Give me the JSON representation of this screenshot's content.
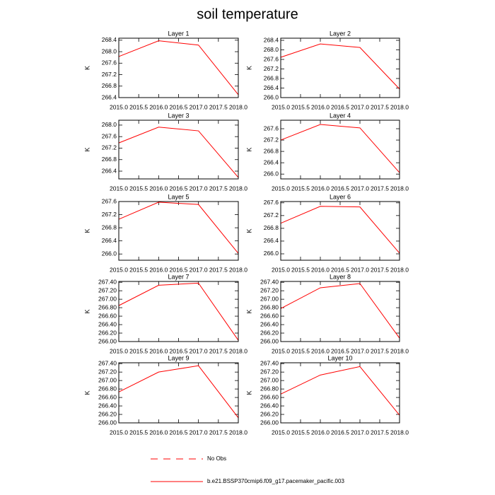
{
  "title": "soil temperature",
  "legend": [
    {
      "label": "No Obs",
      "color": "#ff0000",
      "dashed": true
    },
    {
      "label": "b.e21.BSSP370cmip6.f09_g17.pacemaker_pacific.003",
      "color": "#ff0000",
      "dashed": false
    }
  ],
  "chart_data": [
    {
      "type": "line",
      "title": "Layer 1",
      "ylabel": "K",
      "x": [
        2015,
        2016,
        2017,
        2018
      ],
      "xlim": [
        2015,
        2018
      ],
      "xticks": [
        {
          "value": 2015,
          "label": "2015.0"
        },
        2015.5,
        {
          "value": 2016,
          "label": "2016.0"
        },
        2016.5,
        {
          "value": 2017,
          "label": "2017.0"
        },
        2017.5,
        {
          "value": 2018,
          "label": "2018.0"
        }
      ],
      "ylim": [
        266.4,
        268.47
      ],
      "yticks": [
        266.4,
        266.8,
        267.2,
        267.6,
        {
          "value": 268,
          "label": "268.0"
        },
        268.4
      ],
      "series": [
        {
          "color": "#ff0000",
          "values": [
            267.83,
            268.38,
            268.23,
            266.5
          ]
        }
      ]
    },
    {
      "type": "line",
      "title": "Layer 2",
      "ylabel": "K",
      "x": [
        2015,
        2016,
        2017,
        2018
      ],
      "xlim": [
        2015,
        2018
      ],
      "xticks": [
        {
          "value": 2015,
          "label": "2015.0"
        },
        2015.5,
        {
          "value": 2016,
          "label": "2016.0"
        },
        2016.5,
        {
          "value": 2017,
          "label": "2017.0"
        },
        2017.5,
        {
          "value": 2018,
          "label": "2018.0"
        }
      ],
      "ylim": [
        266.0,
        268.49
      ],
      "yticks": [
        {
          "value": 266,
          "label": "266.0"
        },
        266.4,
        266.8,
        267.2,
        267.6,
        {
          "value": 268,
          "label": "268.0"
        },
        268.4
      ],
      "series": [
        {
          "color": "#ff0000",
          "values": [
            267.69,
            268.25,
            268.1,
            266.36
          ]
        }
      ]
    },
    {
      "type": "line",
      "title": "Layer 3",
      "ylabel": "K",
      "x": [
        2015,
        2016,
        2017,
        2018
      ],
      "xlim": [
        2015,
        2018
      ],
      "xticks": [
        {
          "value": 2015,
          "label": "2015.0"
        },
        2015.5,
        {
          "value": 2016,
          "label": "2016.0"
        },
        2016.5,
        {
          "value": 2017,
          "label": "2017.0"
        },
        2017.5,
        {
          "value": 2018,
          "label": "2018.0"
        }
      ],
      "ylim": [
        266.13,
        268.17
      ],
      "yticks": [
        266.4,
        266.8,
        267.2,
        267.6,
        {
          "value": 268,
          "label": "268.0"
        }
      ],
      "series": [
        {
          "color": "#ff0000",
          "values": [
            267.38,
            267.93,
            267.8,
            266.18
          ]
        }
      ]
    },
    {
      "type": "line",
      "title": "Layer 4",
      "ylabel": "K",
      "x": [
        2015,
        2016,
        2017,
        2018
      ],
      "xlim": [
        2015,
        2018
      ],
      "xticks": [
        {
          "value": 2015,
          "label": "2015.0"
        },
        2015.5,
        {
          "value": 2016,
          "label": "2016.0"
        },
        2016.5,
        {
          "value": 2017,
          "label": "2017.0"
        },
        2017.5,
        {
          "value": 2018,
          "label": "2018.0"
        }
      ],
      "ylim": [
        265.83,
        267.9
      ],
      "yticks": [
        {
          "value": 266,
          "label": "266.0"
        },
        266.4,
        266.8,
        267.2,
        267.6
      ],
      "series": [
        {
          "color": "#ff0000",
          "values": [
            267.2,
            267.75,
            267.63,
            266.05
          ]
        }
      ]
    },
    {
      "type": "line",
      "title": "Layer 5",
      "ylabel": "K",
      "x": [
        2015,
        2016,
        2017,
        2018
      ],
      "xlim": [
        2015,
        2018
      ],
      "xticks": [
        {
          "value": 2015,
          "label": "2015.0"
        },
        2015.5,
        {
          "value": 2016,
          "label": "2016.0"
        },
        2016.5,
        {
          "value": 2017,
          "label": "2017.0"
        },
        2017.5,
        {
          "value": 2018,
          "label": "2018.0"
        }
      ],
      "ylim": [
        265.81,
        267.6
      ],
      "yticks": [
        {
          "value": 266,
          "label": "266.0"
        },
        266.4,
        266.8,
        267.2,
        267.6
      ],
      "series": [
        {
          "color": "#ff0000",
          "values": [
            267.06,
            267.58,
            267.51,
            266.02
          ]
        }
      ]
    },
    {
      "type": "line",
      "title": "Layer 6",
      "ylabel": "K",
      "x": [
        2015,
        2016,
        2017,
        2018
      ],
      "xlim": [
        2015,
        2018
      ],
      "xticks": [
        {
          "value": 2015,
          "label": "2015.0"
        },
        2015.5,
        {
          "value": 2016,
          "label": "2016.0"
        },
        2016.5,
        {
          "value": 2017,
          "label": "2017.0"
        },
        2017.5,
        {
          "value": 2018,
          "label": "2018.0"
        }
      ],
      "ylim": [
        265.8,
        267.64
      ],
      "yticks": [
        {
          "value": 266,
          "label": "266.0"
        },
        266.4,
        266.8,
        267.2,
        267.6
      ],
      "series": [
        {
          "color": "#ff0000",
          "values": [
            266.96,
            267.49,
            267.47,
            266.02
          ]
        }
      ]
    },
    {
      "type": "line",
      "title": "Layer 7",
      "ylabel": "K",
      "x": [
        2015,
        2016,
        2017,
        2018
      ],
      "xlim": [
        2015,
        2018
      ],
      "xticks": [
        {
          "value": 2015,
          "label": "2015.0"
        },
        2015.5,
        {
          "value": 2016,
          "label": "2016.0"
        },
        2016.5,
        {
          "value": 2017,
          "label": "2017.0"
        },
        2017.5,
        {
          "value": 2018,
          "label": "2018.0"
        }
      ],
      "ylim": [
        266.0,
        267.42
      ],
      "yticks": [
        {
          "value": 266,
          "label": "266.00"
        },
        {
          "value": 266.2,
          "label": "266.20"
        },
        {
          "value": 266.4,
          "label": "266.40"
        },
        {
          "value": 266.6,
          "label": "266.60"
        },
        {
          "value": 266.8,
          "label": "266.80"
        },
        {
          "value": 267,
          "label": "267.00"
        },
        {
          "value": 267.2,
          "label": "267.20"
        },
        {
          "value": 267.4,
          "label": "267.40"
        }
      ],
      "series": [
        {
          "color": "#ff0000",
          "values": [
            266.85,
            267.33,
            267.38,
            266.03
          ]
        }
      ]
    },
    {
      "type": "line",
      "title": "Layer 8",
      "ylabel": "K",
      "x": [
        2015,
        2016,
        2017,
        2018
      ],
      "xlim": [
        2015,
        2018
      ],
      "xticks": [
        {
          "value": 2015,
          "label": "2015.0"
        },
        2015.5,
        {
          "value": 2016,
          "label": "2016.0"
        },
        2016.5,
        {
          "value": 2017,
          "label": "2017.0"
        },
        2017.5,
        {
          "value": 2018,
          "label": "2018.0"
        }
      ],
      "ylim": [
        266.0,
        267.42
      ],
      "yticks": [
        {
          "value": 266,
          "label": "266.00"
        },
        {
          "value": 266.2,
          "label": "266.20"
        },
        {
          "value": 266.4,
          "label": "266.40"
        },
        {
          "value": 266.6,
          "label": "266.60"
        },
        {
          "value": 266.8,
          "label": "266.80"
        },
        {
          "value": 267,
          "label": "267.00"
        },
        {
          "value": 267.2,
          "label": "267.20"
        },
        {
          "value": 267.4,
          "label": "267.40"
        }
      ],
      "series": [
        {
          "color": "#ff0000",
          "values": [
            266.78,
            267.27,
            267.37,
            266.08
          ]
        }
      ]
    },
    {
      "type": "line",
      "title": "Layer 9",
      "ylabel": "K",
      "x": [
        2015,
        2016,
        2017,
        2018
      ],
      "xlim": [
        2015,
        2018
      ],
      "xticks": [
        {
          "value": 2015,
          "label": "2015.0"
        },
        2015.5,
        {
          "value": 2016,
          "label": "2016.0"
        },
        2016.5,
        {
          "value": 2017,
          "label": "2017.0"
        },
        2017.5,
        {
          "value": 2018,
          "label": "2018.0"
        }
      ],
      "ylim": [
        266.0,
        267.42
      ],
      "yticks": [
        {
          "value": 266,
          "label": "266.00"
        },
        {
          "value": 266.2,
          "label": "266.20"
        },
        {
          "value": 266.4,
          "label": "266.40"
        },
        {
          "value": 266.6,
          "label": "266.60"
        },
        {
          "value": 266.8,
          "label": "266.80"
        },
        {
          "value": 267,
          "label": "267.00"
        },
        {
          "value": 267.2,
          "label": "267.20"
        },
        {
          "value": 267.4,
          "label": "267.40"
        }
      ],
      "series": [
        {
          "color": "#ff0000",
          "values": [
            266.73,
            267.2,
            267.35,
            266.12
          ]
        }
      ]
    },
    {
      "type": "line",
      "title": "Layer 10",
      "ylabel": "K",
      "x": [
        2015,
        2016,
        2017,
        2018
      ],
      "xlim": [
        2015,
        2018
      ],
      "xticks": [
        {
          "value": 2015,
          "label": "2015.0"
        },
        2015.5,
        {
          "value": 2016,
          "label": "2016.0"
        },
        2016.5,
        {
          "value": 2017,
          "label": "2017.0"
        },
        2017.5,
        {
          "value": 2018,
          "label": "2018.0"
        }
      ],
      "ylim": [
        266.0,
        267.42
      ],
      "yticks": [
        {
          "value": 266,
          "label": "266.00"
        },
        {
          "value": 266.2,
          "label": "266.20"
        },
        {
          "value": 266.4,
          "label": "266.40"
        },
        {
          "value": 266.6,
          "label": "266.60"
        },
        {
          "value": 266.8,
          "label": "266.80"
        },
        {
          "value": 267,
          "label": "267.00"
        },
        {
          "value": 267.2,
          "label": "267.20"
        },
        {
          "value": 267.4,
          "label": "267.40"
        }
      ],
      "series": [
        {
          "color": "#ff0000",
          "values": [
            266.68,
            267.13,
            267.33,
            266.18
          ]
        }
      ]
    }
  ]
}
